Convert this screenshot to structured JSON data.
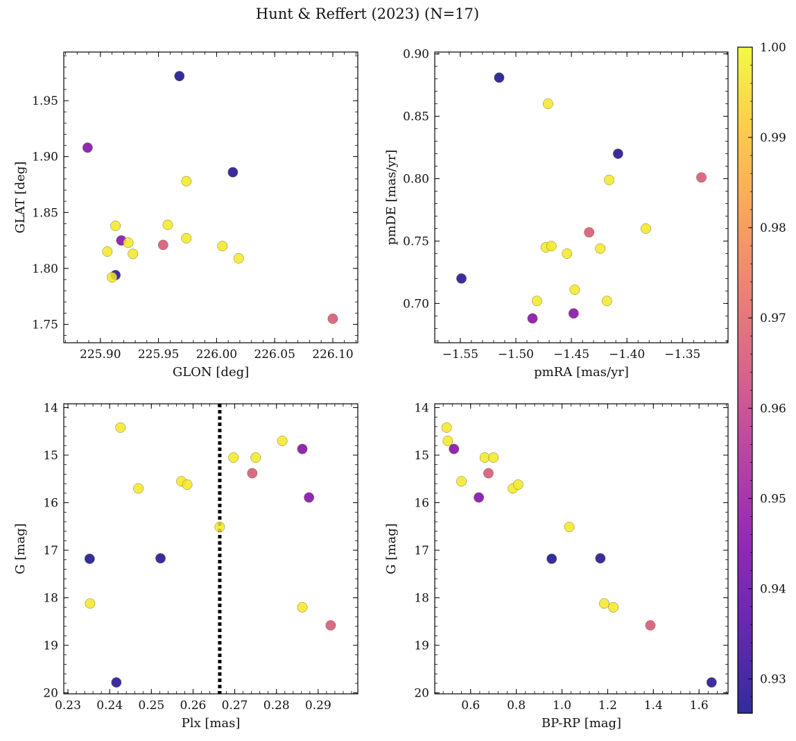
{
  "chart_data": {
    "title": "Hunt & Reffert (2023) (N=17)",
    "colormap": "plasma",
    "colorbar": {
      "range": [
        0.9262,
        1.0
      ],
      "ticks": [
        0.93,
        0.94,
        0.95,
        0.96,
        0.97,
        0.98,
        0.99,
        1.0
      ],
      "tick_labels": [
        "0.93",
        "0.94",
        "0.95",
        "0.96",
        "0.97",
        "0.98",
        "0.99",
        "1.00"
      ]
    },
    "panels": [
      {
        "id": "glon-glat",
        "type": "scatter",
        "xlabel": "GLON [deg]",
        "ylabel": "GLAT [deg]",
        "xlim": [
          225.8685,
          226.1215
        ],
        "ylim": [
          1.7335,
          1.9935
        ],
        "y_inverted": false,
        "xticks": [
          225.9,
          225.95,
          226.0,
          226.05,
          226.1
        ],
        "xtick_labels": [
          "225.90",
          "225.95",
          "226.00",
          "226.05",
          "226.10"
        ],
        "yticks": [
          1.75,
          1.8,
          1.85,
          1.9,
          1.95
        ],
        "ytick_labels": [
          "1.75",
          "1.80",
          "1.85",
          "1.90",
          "1.95"
        ],
        "vline": null
      },
      {
        "id": "pmra-pmde",
        "type": "scatter",
        "xlabel": "pmRA [mas/yr]",
        "ylabel": "pmDE [mas/yr]",
        "xlim": [
          -1.573,
          -1.309
        ],
        "ylim": [
          0.6685,
          0.9015
        ],
        "y_inverted": false,
        "xticks": [
          -1.55,
          -1.5,
          -1.45,
          -1.4,
          -1.35
        ],
        "xtick_labels": [
          "−1.55",
          "−1.50",
          "−1.45",
          "−1.40",
          "−1.35"
        ],
        "yticks": [
          0.7,
          0.75,
          0.8,
          0.85,
          0.9
        ],
        "ytick_labels": [
          "0.70",
          "0.75",
          "0.80",
          "0.85",
          "0.90"
        ],
        "vline": null
      },
      {
        "id": "plx-g",
        "type": "scatter",
        "xlabel": "Plx [mas]",
        "ylabel": "G [mag]",
        "xlim": [
          0.229,
          0.2995
        ],
        "ylim": [
          13.92,
          20.02
        ],
        "y_inverted": true,
        "xticks": [
          0.23,
          0.24,
          0.25,
          0.26,
          0.27,
          0.28,
          0.29
        ],
        "xtick_labels": [
          "0.23",
          "0.24",
          "0.25",
          "0.26",
          "0.27",
          "0.28",
          "0.29"
        ],
        "yticks": [
          14,
          15,
          16,
          17,
          18,
          19,
          20
        ],
        "ytick_labels": [
          "14",
          "15",
          "16",
          "17",
          "18",
          "19",
          "20"
        ],
        "vline": 0.2664
      },
      {
        "id": "bprp-g",
        "type": "scatter",
        "xlabel": "BP-RP [mag]",
        "ylabel": "G [mag]",
        "xlim": [
          0.443,
          1.727
        ],
        "ylim": [
          13.92,
          20.02
        ],
        "y_inverted": true,
        "xticks": [
          0.6,
          0.8,
          1.0,
          1.2,
          1.4,
          1.6
        ],
        "xtick_labels": [
          "0.6",
          "0.8",
          "1.0",
          "1.2",
          "1.4",
          "1.6"
        ],
        "yticks": [
          14,
          15,
          16,
          17,
          18,
          19,
          20
        ],
        "ytick_labels": [
          "14",
          "15",
          "16",
          "17",
          "18",
          "19",
          "20"
        ],
        "vline": null
      }
    ],
    "stars": [
      {
        "glon": 225.968,
        "glat": 1.972,
        "pmra": -1.515,
        "pmde": 0.881,
        "plx": 0.2352,
        "g": 17.18,
        "bprp": 0.955,
        "prob": 0.927
      },
      {
        "glon": 226.014,
        "glat": 1.886,
        "pmra": -1.408,
        "pmde": 0.82,
        "plx": 0.2522,
        "g": 17.17,
        "bprp": 1.168,
        "prob": 0.928
      },
      {
        "glon": 225.913,
        "glat": 1.794,
        "pmra": -1.549,
        "pmde": 0.72,
        "plx": 0.2416,
        "g": 19.78,
        "bprp": 1.655,
        "prob": 0.929
      },
      {
        "glon": 225.889,
        "glat": 1.908,
        "pmra": -1.448,
        "pmde": 0.692,
        "plx": 0.2878,
        "g": 15.89,
        "bprp": 0.636,
        "prob": 0.945
      },
      {
        "glon": 225.918,
        "glat": 1.825,
        "pmra": -1.485,
        "pmde": 0.688,
        "plx": 0.2862,
        "g": 14.87,
        "bprp": 0.527,
        "prob": 0.945
      },
      {
        "glon": 225.954,
        "glat": 1.821,
        "pmra": -1.434,
        "pmde": 0.757,
        "plx": 0.2742,
        "g": 15.38,
        "bprp": 0.678,
        "prob": 0.966
      },
      {
        "glon": 226.1,
        "glat": 1.755,
        "pmra": -1.333,
        "pmde": 0.801,
        "plx": 0.293,
        "g": 18.58,
        "bprp": 1.387,
        "prob": 0.966
      },
      {
        "glon": 225.974,
        "glat": 1.878,
        "pmra": -1.471,
        "pmde": 0.86,
        "plx": 0.2426,
        "g": 14.42,
        "bprp": 0.495,
        "prob": 0.997
      },
      {
        "glon": 225.913,
        "glat": 1.838,
        "pmra": -1.416,
        "pmde": 0.799,
        "plx": 0.2814,
        "g": 14.7,
        "bprp": 0.5,
        "prob": 0.997
      },
      {
        "glon": 225.958,
        "glat": 1.839,
        "pmra": -1.383,
        "pmde": 0.76,
        "plx": 0.2572,
        "g": 15.55,
        "bprp": 0.56,
        "prob": 0.997
      },
      {
        "glon": 225.924,
        "glat": 1.823,
        "pmra": -1.473,
        "pmde": 0.745,
        "plx": 0.2697,
        "g": 15.05,
        "bprp": 0.662,
        "prob": 0.997
      },
      {
        "glon": 225.906,
        "glat": 1.815,
        "pmra": -1.468,
        "pmde": 0.746,
        "plx": 0.275,
        "g": 15.05,
        "bprp": 0.7,
        "prob": 0.997
      },
      {
        "glon": 225.928,
        "glat": 1.813,
        "pmra": -1.454,
        "pmde": 0.74,
        "plx": 0.2469,
        "g": 15.7,
        "bprp": 0.785,
        "prob": 0.997
      },
      {
        "glon": 225.974,
        "glat": 1.827,
        "pmra": -1.424,
        "pmde": 0.744,
        "plx": 0.2586,
        "g": 15.62,
        "bprp": 0.808,
        "prob": 0.997
      },
      {
        "glon": 226.005,
        "glat": 1.82,
        "pmra": -1.447,
        "pmde": 0.711,
        "plx": 0.2664,
        "g": 16.51,
        "bprp": 1.032,
        "prob": 0.997
      },
      {
        "glon": 226.019,
        "glat": 1.809,
        "pmra": -1.481,
        "pmde": 0.702,
        "plx": 0.2353,
        "g": 18.12,
        "bprp": 1.185,
        "prob": 0.997
      },
      {
        "glon": 225.91,
        "glat": 1.792,
        "pmra": -1.418,
        "pmde": 0.702,
        "plx": 0.2862,
        "g": 18.2,
        "bprp": 1.225,
        "prob": 0.997
      }
    ]
  }
}
